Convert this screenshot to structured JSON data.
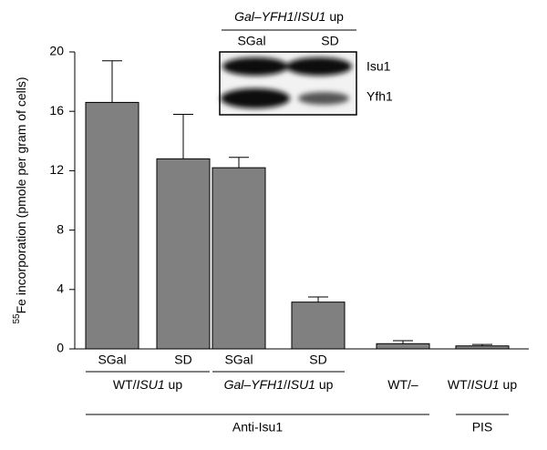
{
  "chart_data": {
    "type": "bar",
    "y_label": [
      {
        "text": "55",
        "superscript": true
      },
      {
        "text": "Fe incorporation (pmole per gram of cells)"
      }
    ],
    "categories": [
      "SGal",
      "SD",
      "SGal",
      "SD",
      null,
      null
    ],
    "values": [
      16.6,
      12.8,
      12.2,
      3.15,
      0.35,
      0.2
    ],
    "errors": [
      2.8,
      3.0,
      0.7,
      0.35,
      0.2,
      0.1
    ],
    "color": "#808080",
    "ylim": [
      0,
      20
    ],
    "yticks": [
      0,
      4,
      8,
      12,
      16,
      20
    ],
    "groups": [
      [
        {
          "text": "WT/"
        },
        {
          "text": "ISU1",
          "italic": true
        },
        {
          "text": " up"
        }
      ],
      [
        {
          "text": "Gal",
          "italic": true
        },
        {
          "text": "–"
        },
        {
          "text": "YFH1",
          "italic": true
        },
        {
          "text": "/"
        },
        {
          "text": "ISU1",
          "italic": true
        },
        {
          "text": " up"
        }
      ],
      [
        {
          "text": "WT/–"
        }
      ],
      [
        {
          "text": "WT/"
        },
        {
          "text": "ISU1",
          "italic": true
        },
        {
          "text": " up"
        }
      ]
    ],
    "supergroups": [
      "Anti-Isu1",
      "PIS"
    ],
    "inset": {
      "header": [
        {
          "text": "Gal",
          "italic": true
        },
        {
          "text": "–"
        },
        {
          "text": "YFH1",
          "italic": true
        },
        {
          "text": "/"
        },
        {
          "text": "ISU1",
          "italic": true
        },
        {
          "text": " up"
        }
      ],
      "lanes": [
        "SGal",
        "SD"
      ],
      "rows": [
        "Isu1",
        "Yfh1"
      ]
    }
  }
}
